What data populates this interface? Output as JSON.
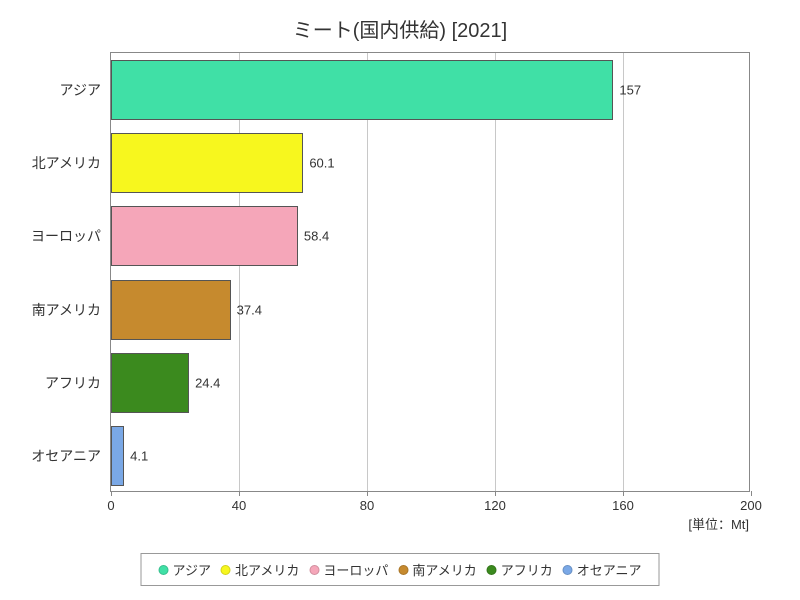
{
  "chart": {
    "type": "bar-horizontal",
    "title": "ミート(国内供給) [2021]",
    "title_fontsize": 20,
    "title_color": "#333333",
    "background_color": "#ffffff",
    "plot_border_color": "#888888",
    "grid_color": "#c8c8c8",
    "x_unit_label": "[単位：Mt]",
    "xlim_min": 0,
    "xlim_max": 200,
    "xtick_step": 40,
    "xticks": [
      0,
      40,
      80,
      120,
      160,
      200
    ],
    "xticks_text": [
      "0",
      "40",
      "80",
      "120",
      "160",
      "200"
    ],
    "label_fontsize": 14,
    "value_fontsize": 13,
    "bar_border_color": "#555555",
    "categories": [
      {
        "label": "アジア",
        "value": 157,
        "value_text": "157",
        "color": "#40e0a6"
      },
      {
        "label": "北アメリカ",
        "value": 60.1,
        "value_text": "60.1",
        "color": "#f7f71e"
      },
      {
        "label": "ヨーロッパ",
        "value": 58.4,
        "value_text": "58.4",
        "color": "#f5a6b9"
      },
      {
        "label": "南アメリカ",
        "value": 37.4,
        "value_text": "37.4",
        "color": "#c68a2e"
      },
      {
        "label": "アフリカ",
        "value": 24.4,
        "value_text": "24.4",
        "color": "#3b8a1e"
      },
      {
        "label": "オセアニア",
        "value": 4.1,
        "value_text": "4.1",
        "color": "#7aa8e6"
      }
    ],
    "legend": [
      {
        "label": "アジア",
        "color": "#40e0a6"
      },
      {
        "label": "北アメリカ",
        "color": "#f7f71e"
      },
      {
        "label": "ヨーロッパ",
        "color": "#f5a6b9"
      },
      {
        "label": "南アメリカ",
        "color": "#c68a2e"
      },
      {
        "label": "アフリカ",
        "color": "#3b8a1e"
      },
      {
        "label": "オセアニア",
        "color": "#7aa8e6"
      }
    ]
  }
}
